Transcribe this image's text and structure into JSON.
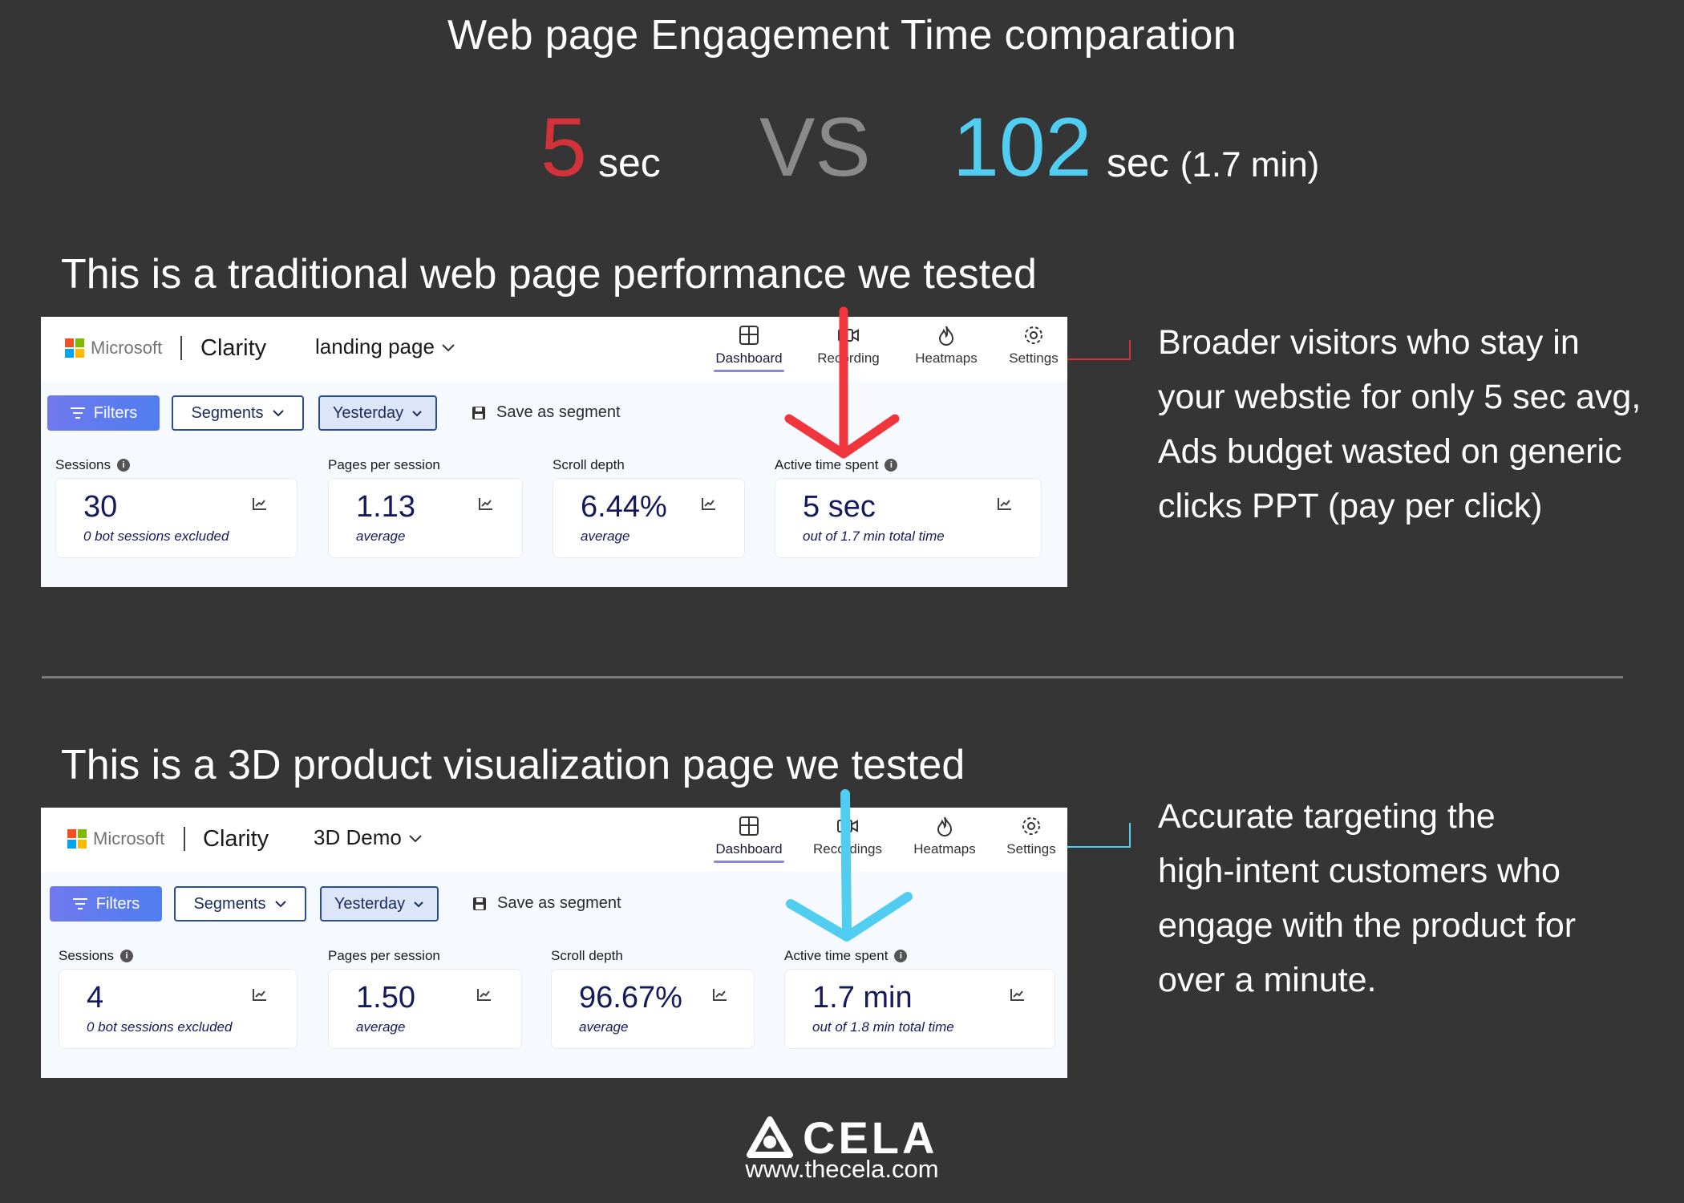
{
  "header": {
    "title": "Web page Engagement Time comparation",
    "left_value": "5",
    "left_unit": "sec",
    "vs": "VS",
    "right_value": "102",
    "right_unit": "sec",
    "right_unit_sub": "(1.7 min)"
  },
  "colors": {
    "red": "#d2333b",
    "blue": "#52cdf2",
    "vs_gray": "#8a8a8a",
    "background": "#353535"
  },
  "sections": [
    {
      "title": "This is a traditional web page performance we tested",
      "panel": {
        "brand": "Microsoft",
        "product": "Clarity",
        "project": "landing page",
        "nav": [
          "Dashboard",
          "Recording",
          "Heatmaps",
          "Settings"
        ],
        "filters": "Filters",
        "segments": "Segments",
        "date": "Yesterday",
        "save": "Save as segment",
        "metrics": [
          {
            "label": "Sessions",
            "value": "30",
            "sub": "0 bot sessions excluded"
          },
          {
            "label": "Pages per session",
            "value": "1.13",
            "sub": "average"
          },
          {
            "label": "Scroll depth",
            "value": "6.44%",
            "sub": "average"
          },
          {
            "label": "Active time spent",
            "value": "5 sec",
            "sub": "out of 1.7 min total time"
          }
        ]
      },
      "note": [
        "Broader visitors who stay in",
        "your webstie for only 5 sec avg,",
        "Ads budget wasted on generic",
        "clicks PPT (pay per click)"
      ]
    },
    {
      "title": "This is a 3D product visualization page we tested",
      "panel": {
        "brand": "Microsoft",
        "product": "Clarity",
        "project": "3D Demo",
        "nav": [
          "Dashboard",
          "Recordings",
          "Heatmaps",
          "Settings"
        ],
        "filters": "Filters",
        "segments": "Segments",
        "date": "Yesterday",
        "save": "Save as segment",
        "metrics": [
          {
            "label": "Sessions",
            "value": "4",
            "sub": "0 bot sessions excluded"
          },
          {
            "label": "Pages per session",
            "value": "1.50",
            "sub": "average"
          },
          {
            "label": "Scroll depth",
            "value": "96.67%",
            "sub": "average"
          },
          {
            "label": "Active time spent",
            "value": "1.7 min",
            "sub": "out of 1.8 min total time"
          }
        ]
      },
      "note": [
        "Accurate targeting the",
        "high-intent customers who",
        "engage with the product for",
        "over a minute."
      ]
    }
  ],
  "footer": {
    "brand": "CELA",
    "url": "www.thecela.com"
  }
}
